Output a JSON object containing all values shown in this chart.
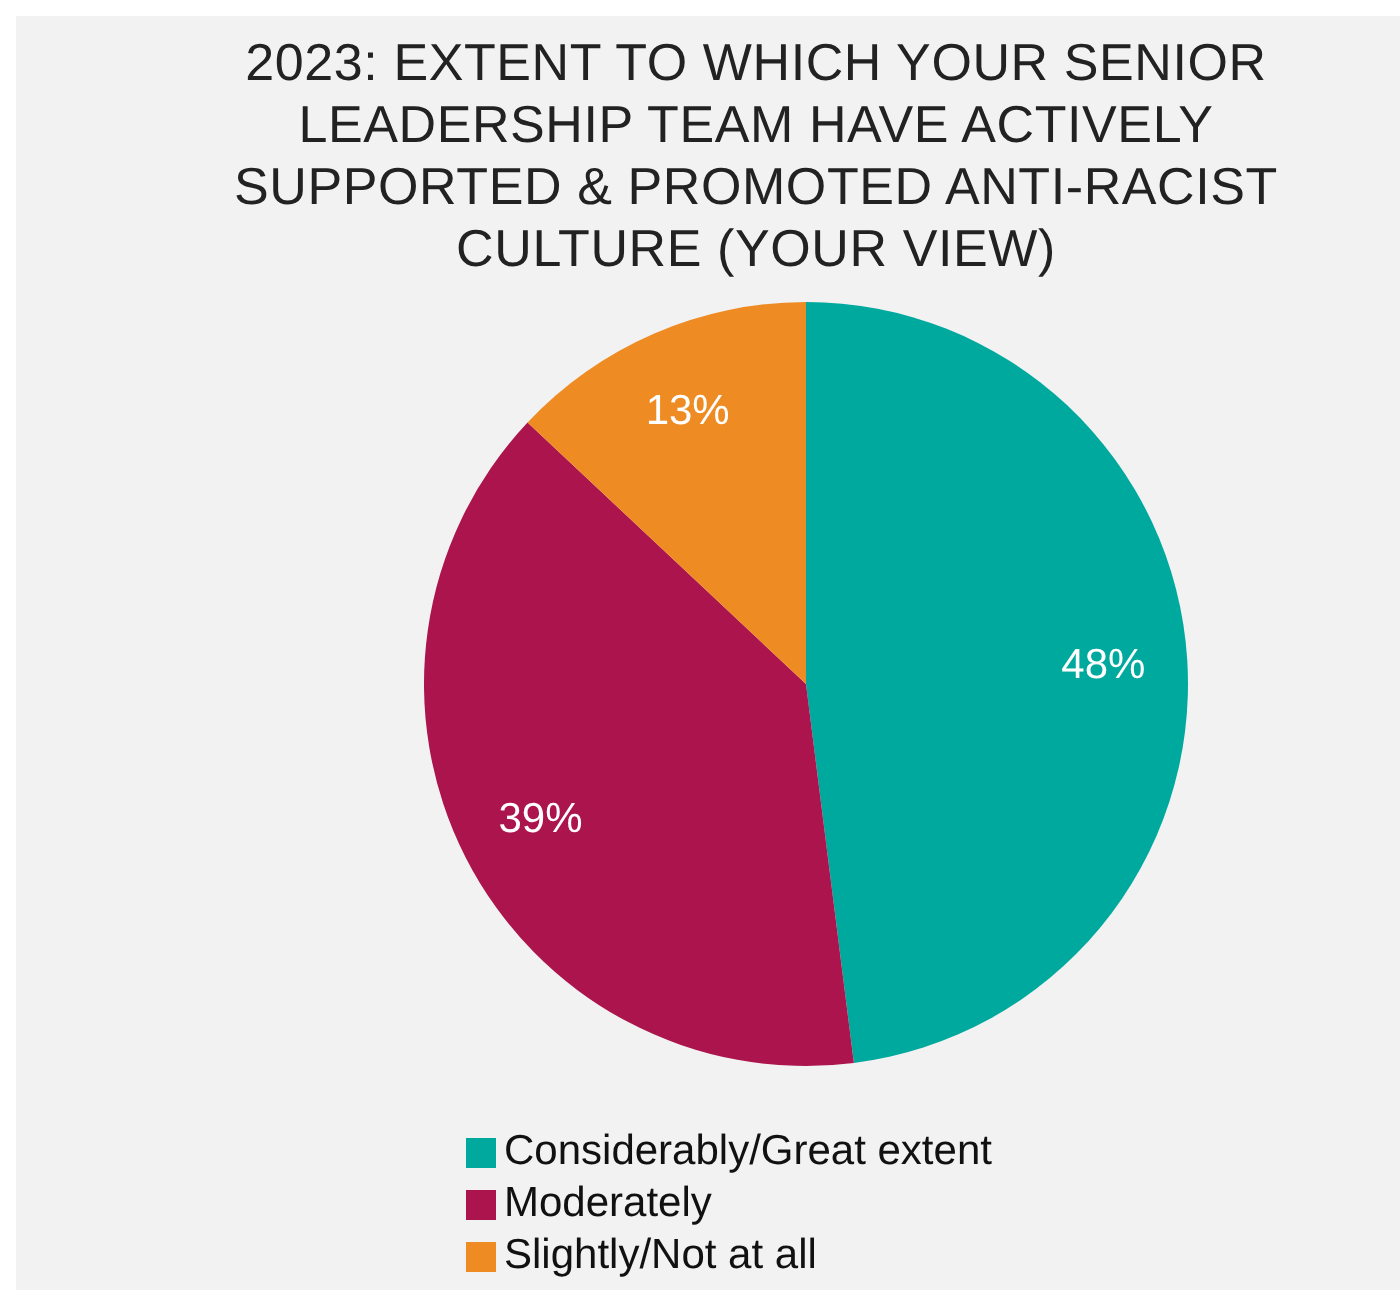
{
  "chart_data": {
    "type": "pie",
    "title": "2023: EXTENT TO WHICH YOUR SENIOR LEADERSHIP TEAM HAVE ACTIVELY SUPPORTED & PROMOTED ANTI-RACIST CULTURE (YOUR VIEW)",
    "categories": [
      "Considerably/Great extent",
      "Moderately",
      "Slightly/Not at all"
    ],
    "values": [
      48,
      39,
      13
    ],
    "value_labels": [
      "48%",
      "39%",
      "13%"
    ],
    "colors": [
      "#00a99d",
      "#ab144c",
      "#ee8b22"
    ],
    "legend": "bottom"
  }
}
